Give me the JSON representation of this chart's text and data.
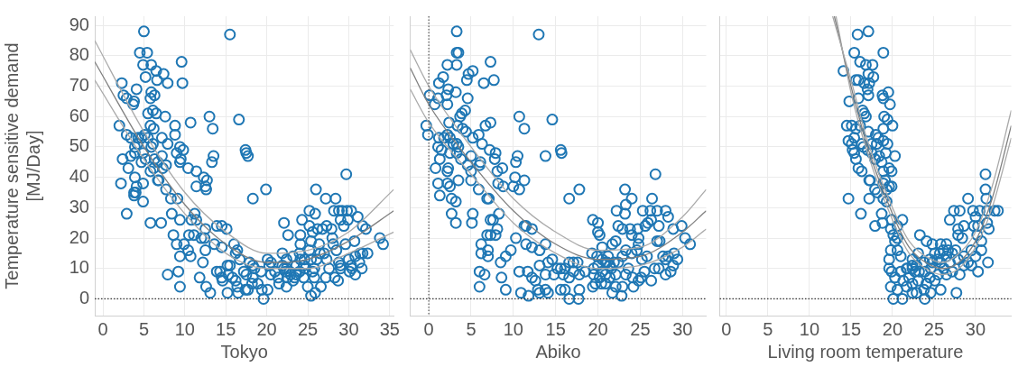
{
  "chart_data": [
    {
      "type": "scatter",
      "xlabel": "Tokyo",
      "ylabel": "Temperature sensitive demand\n[MJ/Day]",
      "xlim": [
        -1,
        35.5
      ],
      "ylim": [
        -5.5,
        93
      ],
      "xticks": [
        0,
        5,
        10,
        15,
        20,
        25,
        30,
        35
      ],
      "yticks": [
        0,
        10,
        20,
        30,
        40,
        50,
        60,
        70,
        80,
        90
      ],
      "grid": true,
      "ref_lines": [
        {
          "axis": "y",
          "value": 0,
          "line_style": "dotted",
          "color": "#333333"
        }
      ],
      "series": [
        {
          "marker": "circle",
          "color": "#1f77b4",
          "x": [
            5.0,
            15.5,
            4.5,
            5.4,
            4.9,
            5.9,
            5.2,
            9.6,
            6.5,
            7.4,
            6.6,
            7.9,
            9.7,
            2.3,
            4.1,
            2.5,
            2.9,
            3.7,
            3.8,
            5.9,
            6.3,
            5.8,
            5.5,
            6.1,
            6.5,
            7.6,
            13,
            10.7,
            16.6,
            13.4,
            8.8,
            8.8,
            2.0,
            2.9,
            3.4,
            4.3,
            4.7,
            5.1,
            5.5,
            5.8,
            6.2,
            6.1,
            5.9,
            4.2,
            7.2,
            7.9,
            9.4,
            9.8,
            9.0,
            9.5,
            9.4,
            3.9,
            3.4,
            2.4,
            3.9,
            4.9,
            5.2,
            4.7,
            6.3,
            6.7,
            7.2,
            7.7,
            7.3,
            5.8,
            6.2,
            3.1,
            10.4,
            11.4,
            13.5,
            13.3,
            17.4,
            17.5,
            17.7,
            2.2,
            3.9,
            6.8,
            6.7,
            4.9,
            12.3,
            12.7,
            12.5,
            12.6,
            4.1,
            4.0,
            3.8,
            3.8,
            4.9,
            7.7,
            8.3,
            9.1,
            11.4,
            19.9,
            18.3,
            2.9,
            8.4,
            11.2,
            10.8,
            11.4,
            9.4,
            5.8,
            7.1,
            13.9,
            14.5,
            15.1,
            12.5,
            8.6,
            9.0,
            10.5,
            11.1,
            12,
            12.4,
            13.6,
            16,
            14.5,
            9.9,
            10.4,
            9.4,
            10.7,
            12.5,
            16.4,
            16.2,
            16.7,
            12.2,
            7.9,
            9.2,
            9.4,
            11.8,
            12.6,
            13.1,
            13.9,
            14.3,
            14.5,
            14.6,
            15.2,
            15.5,
            15.2,
            15.3,
            15.8,
            16.2,
            16.4,
            16.5,
            17.2,
            17.5,
            17.4,
            17.7,
            17.9,
            18.3,
            18.5,
            18.3,
            18.2,
            18.9,
            19.3,
            19.4,
            20.1,
            19.6,
            20.1,
            20.5,
            20.3,
            20.5,
            21,
            21.4,
            22.1,
            22.6,
            21.5,
            22.4,
            21.9,
            22.4,
            22.8,
            21.9,
            22.4,
            23.2,
            23.6,
            24,
            23.4,
            24.1,
            24.3,
            24.1,
            24,
            24.6,
            25,
            25.4,
            25.9,
            25.2,
            25.2,
            25.6,
            25.9,
            26,
            26.2,
            26.8,
            26.4,
            25.4,
            25.2,
            26.5,
            26.1,
            25.6,
            25.8,
            26.6,
            27.2,
            27.3,
            27,
            27.3,
            27.6,
            27.2,
            28,
            28.1,
            28.4,
            28.2,
            28.8,
            29.2,
            27.9,
            29,
            29.4,
            29.9,
            29.7,
            29.8,
            30.3,
            28.5,
            28.8,
            29,
            29,
            28.3,
            28.7,
            29.6,
            30.7,
            30,
            30.3,
            30.8,
            30.1,
            30.4,
            30.8,
            31.1,
            31.7,
            32.1,
            31.4,
            31.7,
            32.3,
            31.3,
            31.6,
            33.8,
            34.2,
            22.1,
            22.3,
            22.9,
            22.5,
            23.2,
            23.6,
            24.5,
            24.7,
            25.8,
            25.4,
            24.1,
            24.5
          ],
          "values": [
            88,
            87,
            81,
            81,
            77,
            77,
            73,
            78,
            75,
            74,
            72,
            71,
            71,
            71,
            69,
            67,
            66,
            64,
            65,
            68,
            67,
            66,
            61,
            62,
            61,
            60,
            60,
            58,
            59,
            56,
            57,
            54,
            57,
            54,
            53,
            53,
            53,
            54,
            53,
            57,
            56,
            51,
            50,
            51,
            53,
            51,
            50,
            49,
            48,
            46,
            45,
            50,
            47,
            46,
            48,
            48,
            46,
            45,
            46,
            45,
            47,
            44,
            43,
            42,
            43,
            43,
            43,
            42,
            47,
            45,
            49,
            48,
            47,
            38,
            40,
            39,
            39,
            38,
            40,
            39,
            37,
            36,
            37,
            35,
            35,
            34,
            32,
            36,
            33,
            33,
            37,
            36,
            33,
            28,
            28,
            28,
            26,
            26,
            26,
            25,
            25,
            24,
            24,
            23,
            23,
            21,
            18,
            21,
            21,
            20,
            20,
            18,
            18,
            17,
            18,
            16,
            14,
            14,
            16,
            16,
            15,
            13,
            12,
            8,
            9,
            4,
            7,
            4,
            2,
            9,
            9,
            7,
            6,
            11,
            11,
            2,
            8,
            7,
            6,
            4,
            2,
            9,
            8,
            3,
            3,
            12,
            11,
            10,
            7,
            5,
            5,
            9,
            3,
            3,
            0,
            13,
            12,
            11,
            8,
            9,
            7,
            25,
            21,
            5,
            4,
            11,
            10,
            9,
            15,
            13,
            14,
            11,
            9,
            7,
            21,
            26,
            18,
            15,
            13,
            4,
            1,
            2,
            29,
            24,
            22,
            28,
            36,
            23,
            23,
            18,
            19,
            16,
            15,
            13,
            9,
            7,
            4,
            33,
            24,
            15,
            13,
            10,
            7,
            20,
            18,
            33,
            29,
            29,
            29,
            23,
            26,
            24,
            26,
            41,
            29,
            29,
            16,
            12,
            11,
            10,
            7,
            6,
            18,
            19,
            13,
            11,
            14,
            9,
            10,
            8,
            27,
            24,
            23,
            15,
            15,
            15,
            12,
            10,
            20,
            18,
            10,
            9,
            8,
            7,
            6,
            8,
            7,
            10,
            10,
            13,
            13,
            11
          ]
        },
        {
          "type": "line",
          "color": "#aaaaaa",
          "x": [
            -1,
            5,
            10,
            15,
            20,
            25,
            30,
            35.5
          ],
          "values": [
            85,
            55,
            35,
            22,
            15,
            16,
            22,
            36
          ]
        },
        {
          "type": "line",
          "color": "#808080",
          "x": [
            -1,
            5,
            10,
            15,
            20,
            22,
            25,
            30,
            35.5
          ],
          "values": [
            78,
            50,
            31,
            18,
            12,
            12,
            13,
            19,
            29
          ]
        },
        {
          "type": "line",
          "color": "#aaaaaa",
          "x": [
            -1,
            5,
            10,
            15,
            20,
            25,
            30,
            35.5
          ],
          "values": [
            72,
            46,
            28,
            15,
            10,
            10,
            15,
            22
          ]
        }
      ]
    },
    {
      "type": "scatter",
      "xlabel": "Abiko",
      "xlim": [
        -2.2,
        32.8
      ],
      "ylim": [
        -5.5,
        93
      ],
      "xticks": [
        0,
        5,
        10,
        15,
        20,
        25,
        30
      ],
      "grid": true,
      "tick_labels": "x",
      "ref_lines": [
        {
          "axis": "y",
          "value": 0,
          "line_style": "dotted",
          "color": "#333333"
        },
        {
          "axis": "x",
          "value": 0,
          "line_style": "dotted",
          "color": "#555555"
        }
      ],
      "series": [
        {
          "marker": "circle",
          "color": "#1f77b4",
          "x": [
            3.3,
            13,
            3.3,
            3.5,
            7.3,
            2.2,
            3.3,
            5.2,
            4.7,
            1.7,
            2.3,
            2.1,
            2.2,
            1.2,
            6.5,
            7.7,
            4.5,
            3.2,
            0.1,
            0.7,
            1.1,
            4.6,
            3.9,
            4.3,
            3.7,
            10.7,
            14.6,
            11.3,
            6.7,
            7.3,
            -0.3,
            -0.1,
            2.4,
            3.4,
            4,
            4.4,
            5.9,
            6.3,
            5.2,
            1.2,
            1.8,
            2.2,
            1.1,
            1.5,
            1.3,
            2.5,
            2.9,
            3.3,
            3.5,
            2.5,
            3.3,
            3.8,
            5,
            4.6,
            5,
            7.2,
            7.9,
            6.1,
            6,
            7.8,
            10.5,
            10.3,
            13.8,
            15.6,
            15.7,
            0.8,
            1.1,
            1.3,
            2.3,
            2.2,
            3.5,
            2.2,
            2.5,
            5,
            5.9,
            8.1,
            8.7,
            8.2,
            8.8,
            10.2,
            11.3,
            10,
            10.7,
            17.8,
            16.6,
            2.7,
            3.2,
            2.7,
            3.2,
            5.2,
            5.1,
            6.9,
            7.1,
            8.3,
            7.3,
            7.6,
            6.9,
            7.3,
            8.1,
            7.9,
            6.2,
            7,
            6.2,
            7,
            10.3,
            11.3,
            11.5,
            12.2,
            11.5,
            12.2,
            13.1,
            13.8,
            9.7,
            9.1,
            8.5,
            10.7,
            11.7,
            6,
            6.6,
            6,
            8.6,
            9.1,
            10.9,
            11.8,
            12.2,
            12.6,
            12.9,
            13.1,
            13.8,
            14.1,
            13.1,
            14.1,
            14.6,
            13.8,
            14.8,
            15.2,
            15.6,
            16.1,
            16.6,
            17.1,
            17.6,
            15.6,
            16.1,
            16.6,
            17.7,
            15.9,
            16.6,
            17.1,
            17.8,
            18.5,
            17.8,
            19.4,
            20,
            20,
            20.2,
            19.3,
            19.9,
            20.5,
            19.4,
            19.7,
            20.4,
            20.9,
            19.5,
            20,
            20.5,
            21.1,
            21.6,
            19.5,
            20.2,
            20.9,
            21.4,
            22.1,
            21.7,
            22.8,
            22.1,
            22.9,
            22.2,
            22.4,
            22.9,
            21.7,
            22.1,
            23.2,
            23.3,
            23.2,
            24,
            23.8,
            24,
            23.3,
            22.9,
            24,
            24.6,
            23.6,
            23.3,
            24.1,
            24.2,
            24.8,
            24.8,
            24.8,
            24.7,
            25.3,
            26.2,
            26.4,
            27,
            25.6,
            25.9,
            26.3,
            25.2,
            25.8,
            25.5,
            25.1,
            26.3,
            26.8,
            27.2,
            27,
            27.3,
            26.7,
            27.2,
            27.7,
            28,
            28,
            28.3,
            28,
            28.6,
            28.9,
            28.9,
            29.9,
            29,
            28.3,
            29.4,
            30.3,
            30.9,
            20.9,
            21.4,
            21.9,
            20.5,
            21.2,
            22.4
          ],
          "values": [
            88,
            87,
            81,
            81,
            78,
            77,
            77,
            75,
            74,
            73,
            69,
            67,
            64,
            71,
            71,
            72,
            72,
            68,
            67,
            64,
            66,
            66,
            61,
            62,
            60,
            60,
            59,
            56,
            57,
            58,
            57,
            54,
            58,
            57,
            56,
            55,
            54,
            51,
            53,
            53,
            53,
            54,
            50,
            49,
            46,
            53,
            51,
            51,
            50,
            48,
            48,
            46,
            47,
            44,
            42,
            49,
            48,
            45,
            44,
            46,
            47,
            45,
            47,
            49,
            48,
            43,
            38,
            34,
            43,
            42,
            39,
            38,
            37,
            39,
            36,
            42,
            43,
            38,
            37,
            40,
            39,
            37,
            36,
            36,
            33,
            33,
            32,
            28,
            25,
            28,
            25,
            33,
            33,
            28,
            26,
            26,
            21,
            21,
            23,
            21,
            18,
            16,
            15,
            14,
            20,
            24,
            24,
            23,
            18,
            17,
            16,
            18,
            16,
            14,
            12,
            9,
            9,
            9,
            8,
            4,
            7,
            3,
            2,
            1,
            7,
            6,
            3,
            2,
            3,
            2,
            11,
            12,
            13,
            8,
            8,
            10,
            10,
            10,
            12,
            12,
            12,
            3,
            3,
            0,
            0,
            8,
            7,
            9,
            8,
            9,
            3,
            26,
            25,
            22,
            21,
            15,
            14,
            17,
            4,
            5,
            5,
            5,
            10,
            11,
            9,
            12,
            10,
            8,
            7,
            8,
            7,
            8,
            2,
            1,
            4,
            4,
            29,
            24,
            23,
            18,
            19,
            36,
            31,
            28,
            33,
            23,
            21,
            16,
            14,
            15,
            16,
            10,
            8,
            7,
            4,
            6,
            20,
            18,
            23,
            29,
            29,
            33,
            29,
            24,
            25,
            26,
            13,
            14,
            9,
            7,
            6,
            41,
            24,
            19,
            19,
            10,
            10,
            14,
            13,
            29,
            27,
            8,
            9,
            11,
            23,
            24,
            15,
            14,
            13,
            20,
            18,
            12,
            11,
            12,
            13,
            14,
            12
          ]
        },
        {
          "type": "line",
          "color": "#aaaaaa",
          "x": [
            -2.2,
            0,
            5,
            10,
            15,
            20,
            25,
            30,
            32.8
          ],
          "values": [
            82,
            70,
            50,
            33,
            22,
            16,
            17,
            27,
            36
          ]
        },
        {
          "type": "line",
          "color": "#808080",
          "x": [
            -2.2,
            0,
            5,
            10,
            15,
            20,
            25,
            30,
            32.8
          ],
          "values": [
            76,
            64,
            45,
            29,
            18,
            13,
            14,
            22,
            29
          ]
        },
        {
          "type": "line",
          "color": "#aaaaaa",
          "x": [
            -2.2,
            0,
            5,
            10,
            15,
            20,
            25,
            30,
            32.8
          ],
          "values": [
            69,
            58,
            41,
            25,
            15,
            10,
            11,
            17,
            23
          ]
        }
      ]
    },
    {
      "type": "scatter",
      "xlabel": "Living room temperature",
      "xlim": [
        -0.8,
        34.3
      ],
      "ylim": [
        -5.5,
        93
      ],
      "xticks": [
        0,
        5,
        10,
        15,
        20,
        25,
        30
      ],
      "grid": true,
      "tick_labels": "x",
      "ref_lines": [
        {
          "axis": "y",
          "value": 0,
          "line_style": "dotted",
          "color": "#333333"
        }
      ],
      "series": [
        {
          "marker": "circle",
          "color": "#1f77b4",
          "x": [
            17.1,
            15.8,
            15.4,
            18.9,
            16.1,
            16.8,
            17.6,
            14.1,
            17.1,
            17.7,
            15.6,
            15.9,
            16.6,
            17.2,
            17,
            17.1,
            18.8,
            18.9,
            19.5,
            15.9,
            19.7,
            14.8,
            16.4,
            16.6,
            16.8,
            19,
            19.4,
            20,
            14.5,
            15.1,
            15.6,
            16.1,
            17.1,
            18,
            18.3,
            18.9,
            14.7,
            15.4,
            15.1,
            16.3,
            16.5,
            17.5,
            18.1,
            18.9,
            19.4,
            19.2,
            20.3,
            15.2,
            15.4,
            15.6,
            15.9,
            16.3,
            17,
            17.5,
            17.9,
            18.4,
            18.7,
            17.2,
            17.3,
            17.9,
            17.2,
            18.2,
            18.9,
            19.6,
            19.9,
            19.1,
            18.9,
            19.6,
            19.9,
            19.3,
            14.7,
            16.2,
            18.9,
            19.3,
            17.9,
            18.8,
            18.7,
            19.9,
            21.2,
            20.6,
            19.8,
            20.1,
            20.3,
            20.6,
            19.8,
            20.6,
            21,
            19.6,
            19.6,
            19.9,
            20.3,
            19.8,
            20.1,
            21.2,
            20.6,
            21.7,
            22.4,
            21,
            21.7,
            22.4,
            22.7,
            22,
            21.3,
            22.4,
            23.1,
            22.9,
            23.3,
            24.1,
            23.1,
            23.8,
            24.5,
            23.9,
            24.6,
            23.8,
            24.1,
            24.6,
            23.9,
            24.8,
            25.8,
            26.5,
            25.7,
            25.4,
            25.8,
            26.5,
            27.2,
            26.9,
            26.2,
            25.5,
            26.5,
            27.2,
            25.8,
            25.1,
            24.5,
            24.1,
            27.7,
            28.1,
            27.4,
            28.1,
            26.9,
            27.9,
            28.6,
            27.9,
            28.4,
            27.6,
            27.9,
            28.6,
            29.1,
            28.6,
            29.1,
            29.5,
            29.7,
            30,
            30.5,
            29.8,
            30.3,
            30.2,
            30.7,
            29.5,
            30,
            30.7,
            30.3,
            31.2,
            31.2,
            31.3,
            31.4,
            31.4,
            31.6,
            31.5,
            32.3,
            32.7,
            21.8,
            22.4,
            22.9,
            23.2,
            22.4,
            25.1,
            26.1,
            26.7,
            24.8
          ],
          "values": [
            88,
            87,
            81,
            81,
            78,
            77,
            77,
            75,
            74,
            73,
            72,
            72,
            71,
            71,
            69,
            67,
            67,
            66,
            68,
            66,
            64,
            65,
            62,
            61,
            60,
            60,
            59,
            57,
            57,
            57,
            56,
            57,
            55,
            54,
            53,
            56,
            52,
            53,
            51,
            51,
            50,
            51,
            51,
            52,
            51,
            48,
            47,
            49,
            48,
            46,
            43,
            42,
            49,
            48,
            46,
            47,
            45,
            39,
            39,
            36,
            33,
            35,
            42,
            43,
            42,
            39,
            38,
            37,
            37,
            36,
            33,
            28,
            33,
            32,
            24,
            25,
            28,
            26,
            26,
            24,
            23,
            21,
            19,
            20,
            16,
            16,
            14,
            13,
            10,
            9,
            7,
            4,
            0,
            0,
            3,
            4,
            2,
            9,
            10,
            11,
            9,
            7,
            6,
            5,
            6,
            2,
            21,
            19,
            15,
            12,
            13,
            9,
            10,
            3,
            5,
            2,
            0,
            18,
            18,
            18,
            15,
            13,
            12,
            14,
            15,
            12,
            10,
            8,
            8,
            9,
            3,
            6,
            7,
            5,
            2,
            8,
            29,
            29,
            26,
            23,
            24,
            21,
            20,
            16,
            13,
            14,
            33,
            11,
            12,
            11,
            29,
            27,
            29,
            24,
            24,
            21,
            19,
            16,
            14,
            16,
            9,
            41,
            36,
            33,
            29,
            25,
            23,
            12,
            29,
            29,
            10,
            10,
            11,
            9,
            13,
            15,
            16,
            16,
            12
          ]
        },
        {
          "type": "line",
          "color": "#aaaaaa",
          "x": [
            12.8,
            15,
            17,
            20,
            22,
            24,
            26,
            28,
            30,
            32,
            34.3
          ],
          "values": [
            93,
            72,
            52,
            30,
            19,
            14,
            12,
            15,
            22,
            37,
            62
          ]
        },
        {
          "type": "line",
          "color": "#808080",
          "x": [
            13,
            15,
            17,
            20,
            22,
            24,
            26,
            28,
            30,
            32,
            34.3
          ],
          "values": [
            93,
            70,
            50,
            28,
            17,
            12,
            10,
            12,
            19,
            33,
            57
          ]
        },
        {
          "type": "line",
          "color": "#aaaaaa",
          "x": [
            13.2,
            15,
            17,
            20,
            22,
            24,
            26,
            28,
            30,
            32,
            34.3
          ],
          "values": [
            93,
            68,
            48,
            26,
            15,
            10,
            8,
            10,
            17,
            30,
            53
          ]
        }
      ]
    }
  ]
}
